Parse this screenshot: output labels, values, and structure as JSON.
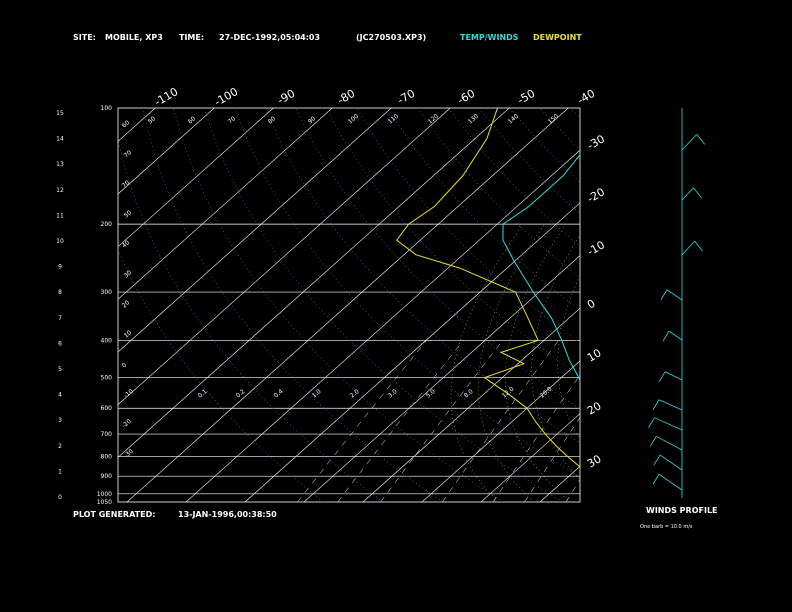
{
  "header": {
    "site_label": "SITE:",
    "site_value": "MOBILE, XP3",
    "time_label": "TIME:",
    "time_value": "27-DEC-1992,05:04:03",
    "file_value": "(JC270503.XP3)",
    "legend_temp": "TEMP/WINDS",
    "legend_dew": "DEWPOINT"
  },
  "footer": {
    "generated_label": "PLOT GENERATED:",
    "generated_value": "13-JAN-1996,00:38:50",
    "winds_title": "WINDS PROFILE",
    "winds_note": "One barb = 10.0 m/s"
  },
  "colors": {
    "temp": "#38d8d8",
    "dew": "#e8e030",
    "grid": "#ffffff",
    "mix": "#e08a3c",
    "dry": "#4a78c8",
    "moist": "#c8a060"
  },
  "chart_data": {
    "type": "line",
    "pressure_labels": [
      "100",
      "200",
      "300",
      "400",
      "500",
      "600",
      "700",
      "800",
      "900",
      "1000",
      "1050"
    ],
    "pressures": [
      100,
      200,
      300,
      400,
      500,
      600,
      700,
      800,
      900,
      1000,
      1050
    ],
    "height_labels": [
      "0",
      "1",
      "2",
      "3",
      "4",
      "5",
      "6",
      "7",
      "8",
      "9",
      "10",
      "11",
      "12",
      "13",
      "14",
      "15"
    ],
    "top_temp_labels": [
      "-110",
      "-100",
      "-90",
      "-80",
      "-70",
      "-60",
      "-50",
      "-40"
    ],
    "right_temp_labels": [
      "-30",
      "-20",
      "-10",
      "0",
      "10",
      "20",
      "30"
    ],
    "dry_adiabat_labels": [
      "60",
      "70",
      "70",
      "50",
      "40",
      "30",
      "20",
      "10",
      "0",
      "-10",
      "-20",
      "-30"
    ],
    "moist_adiabat_labels": [
      "50",
      "60",
      "70",
      "80",
      "90",
      "100",
      "110",
      "120",
      "130",
      "140",
      "150"
    ],
    "mixing_ratio_labels": [
      "0.1",
      "0.2",
      "0.4",
      "1.0",
      "2.0",
      "3.0",
      "5.0",
      "8.0",
      "12.0",
      "20.0"
    ],
    "series": [
      {
        "name": "TEMP/WINDS",
        "points": [
          [
            1000,
            16
          ],
          [
            950,
            12
          ],
          [
            900,
            9
          ],
          [
            850,
            6
          ],
          [
            800,
            3
          ],
          [
            750,
            0
          ],
          [
            700,
            -3
          ],
          [
            650,
            -6
          ],
          [
            600,
            -9
          ],
          [
            550,
            -13
          ],
          [
            500,
            -17
          ],
          [
            450,
            -22
          ],
          [
            400,
            -27
          ],
          [
            350,
            -33
          ],
          [
            300,
            -41
          ],
          [
            250,
            -50
          ],
          [
            220,
            -56
          ],
          [
            200,
            -59
          ],
          [
            180,
            -58
          ],
          [
            150,
            -58
          ],
          [
            120,
            -60
          ],
          [
            100,
            -63
          ]
        ]
      },
      {
        "name": "DEWPOINT",
        "points": [
          [
            1000,
            13
          ],
          [
            980,
            11
          ],
          [
            950,
            6
          ],
          [
            900,
            3
          ],
          [
            850,
            0
          ],
          [
            800,
            -4
          ],
          [
            750,
            -8
          ],
          [
            700,
            -12
          ],
          [
            650,
            -16
          ],
          [
            600,
            -20
          ],
          [
            550,
            -26
          ],
          [
            500,
            -33
          ],
          [
            460,
            -29
          ],
          [
            430,
            -35
          ],
          [
            400,
            -31
          ],
          [
            350,
            -37
          ],
          [
            300,
            -44
          ],
          [
            260,
            -58
          ],
          [
            240,
            -68
          ],
          [
            220,
            -74
          ],
          [
            200,
            -75
          ],
          [
            180,
            -74
          ],
          [
            150,
            -75
          ],
          [
            120,
            -78
          ],
          [
            100,
            -82
          ]
        ]
      }
    ]
  }
}
